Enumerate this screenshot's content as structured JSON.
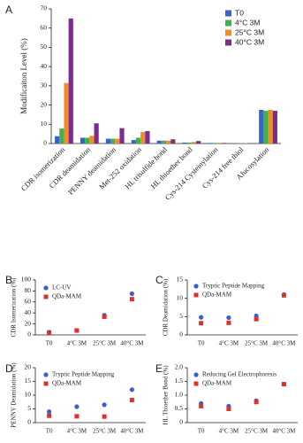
{
  "chart_data": [
    {
      "type": "bar",
      "label": "A",
      "ylabel": "Modificaiton Level (%)",
      "categories": [
        "CDR isomerization",
        "CDR deamidation",
        "PENNY deamidation",
        "Met-252 oxidation",
        "HL trisulfide bond",
        "HL thioether bond",
        "Cys-214 Cysteinylation",
        "Cys-214 free thiol",
        "Afucosylation"
      ],
      "series": [
        {
          "name": "T0",
          "color": "#3a5fd0",
          "values": [
            3.8,
            3,
            2.5,
            1.8,
            1.5,
            0.5,
            0.3,
            0.2,
            17.5
          ]
        },
        {
          "name": "4°C 3M",
          "color": "#3cb44b",
          "values": [
            7.8,
            3,
            2.5,
            3,
            1.5,
            0.5,
            0.3,
            0.2,
            17
          ]
        },
        {
          "name": "25°C 3M",
          "color": "#f28c28",
          "values": [
            31.5,
            4,
            2.5,
            6,
            1.5,
            0.8,
            0.3,
            0.2,
            17.5
          ]
        },
        {
          "name": "40°C 3M",
          "color": "#7b2d8e",
          "values": [
            65,
            10.5,
            8,
            6.5,
            2.2,
            1.3,
            0.3,
            0.2,
            17
          ]
        }
      ],
      "ylim": [
        0,
        70
      ],
      "yticks": [
        0,
        10,
        20,
        30,
        40,
        50,
        60,
        70
      ]
    },
    {
      "type": "scatter",
      "label": "B",
      "ylabel": "CDR Isomerization (%)",
      "categories": [
        "T0",
        "4°C 3M",
        "25°C 3M",
        "40°C 3M"
      ],
      "series": [
        {
          "name": "LC-UV",
          "color": "#3a5fd0",
          "marker": "circle",
          "values": [
            5,
            8,
            36,
            75
          ]
        },
        {
          "name": "QDa-MAM",
          "color": "#e0302a",
          "marker": "square",
          "values": [
            4,
            8,
            33,
            65
          ]
        }
      ],
      "ylim": [
        0,
        100
      ],
      "yticks": [
        0,
        20,
        40,
        60,
        80,
        100
      ]
    },
    {
      "type": "scatter",
      "label": "C",
      "ylabel": "CDR Deamidation (%)",
      "categories": [
        "T0",
        "4°C 3M",
        "25°C 3M",
        "40°C 3M"
      ],
      "series": [
        {
          "name": "Tryptic Peptide Mapping",
          "color": "#3a5fd0",
          "marker": "circle",
          "values": [
            4.8,
            4.7,
            5.2,
            11
          ]
        },
        {
          "name": "QDa-MAM",
          "color": "#e0302a",
          "marker": "square",
          "values": [
            3.2,
            3.3,
            4.3,
            10.8
          ]
        }
      ],
      "ylim": [
        0,
        15
      ],
      "yticks": [
        0,
        5,
        10,
        15
      ]
    },
    {
      "type": "scatter",
      "label": "D",
      "ylabel": "PENNY Deamidation (%)",
      "categories": [
        "T0",
        "4°C 3M",
        "25°C 3M",
        "40°C 3M"
      ],
      "series": [
        {
          "name": "Tryptic Peptide Mapping",
          "color": "#3a5fd0",
          "marker": "circle",
          "values": [
            4,
            5.8,
            6.5,
            12
          ]
        },
        {
          "name": "QDa-MAM",
          "color": "#e0302a",
          "marker": "square",
          "values": [
            2.5,
            2.3,
            2.2,
            8.2
          ]
        }
      ],
      "ylim": [
        0,
        20
      ],
      "yticks": [
        0,
        5,
        10,
        15,
        20
      ]
    },
    {
      "type": "scatter",
      "label": "E",
      "ylabel": "HL Thioether Bond (%)",
      "categories": [
        "T0",
        "4°C 3M",
        "25°C 3M",
        "40°C 3M"
      ],
      "series": [
        {
          "name": "Reducing Gel Electrophoresis",
          "color": "#3a5fd0",
          "marker": "circle",
          "values": [
            0.7,
            0.6,
            0.8,
            1.4
          ]
        },
        {
          "name": "QDa-MAM",
          "color": "#e0302a",
          "marker": "square",
          "values": [
            0.6,
            0.5,
            0.75,
            1.4
          ]
        }
      ],
      "ylim": [
        0,
        2
      ],
      "yticks": [
        0,
        0.5,
        {
          "value": 1,
          "label": "1.0"
        },
        1.5,
        {
          "value": 2,
          "label": "2.0"
        }
      ]
    }
  ]
}
